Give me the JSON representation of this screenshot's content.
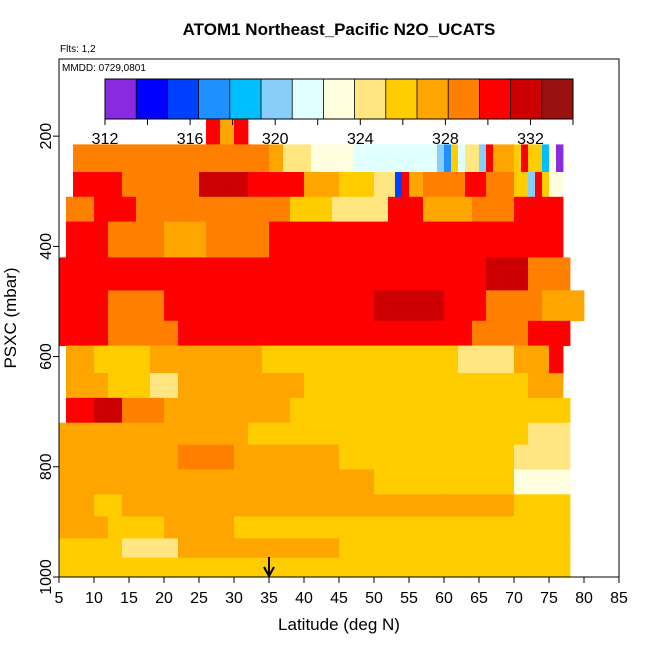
{
  "chart_data": {
    "type": "heatmap",
    "title": "ATOM1 Northeast_Pacific N2O_UCATS",
    "flights_label": "Flts: 1,2",
    "date_label": "MMDD: 0729,0801",
    "xlabel": "Latitude (deg N)",
    "ylabel": "PSXC (mbar)",
    "xlim": [
      5,
      85
    ],
    "ylim": [
      1000,
      60
    ],
    "x_ticks": [
      5,
      10,
      15,
      20,
      25,
      30,
      35,
      40,
      45,
      50,
      55,
      60,
      65,
      70,
      75,
      80,
      85
    ],
    "y_ticks": [
      200,
      400,
      600,
      800,
      1000
    ],
    "colorbar": {
      "range": [
        312,
        334
      ],
      "tick_values": [
        312,
        316,
        320,
        324,
        328,
        332
      ],
      "tick_labels": [
        "312",
        "316",
        "320",
        "324",
        "328",
        "332"
      ],
      "colors": [
        "#8a2be2",
        "#0000ff",
        "#0040ff",
        "#1e90ff",
        "#00bfff",
        "#87cefa",
        "#e0ffff",
        "#ffffe0",
        "#ffe680",
        "#ffcc00",
        "#ffa500",
        "#ff8000",
        "#ff0000",
        "#cc0000",
        "#991111"
      ]
    },
    "marker_arrow_latitude": 35,
    "bands": [
      {
        "p_top": 170,
        "p_bot": 215,
        "segments": [
          {
            "x0": 26,
            "x1": 28,
            "v": 330.5
          },
          {
            "x0": 28,
            "x1": 30,
            "v": 328
          },
          {
            "x0": 30,
            "x1": 32,
            "v": 331
          }
        ]
      },
      {
        "p_top": 215,
        "p_bot": 265,
        "segments": [
          {
            "x0": 7,
            "x1": 20,
            "v": 328.5
          },
          {
            "x0": 20,
            "x1": 35,
            "v": 329
          },
          {
            "x0": 35,
            "x1": 37,
            "v": 327
          },
          {
            "x0": 37,
            "x1": 41,
            "v": 324.5
          },
          {
            "x0": 41,
            "x1": 47,
            "v": 322.5
          },
          {
            "x0": 47,
            "x1": 59,
            "v": 321.5
          },
          {
            "x0": 59,
            "x1": 60,
            "v": 320
          },
          {
            "x0": 60,
            "x1": 61,
            "v": 317
          },
          {
            "x0": 61,
            "x1": 62,
            "v": 326
          },
          {
            "x0": 62,
            "x1": 63,
            "v": 321
          },
          {
            "x0": 63,
            "x1": 65,
            "v": 325
          },
          {
            "x0": 65,
            "x1": 66,
            "v": 320
          },
          {
            "x0": 66,
            "x1": 67,
            "v": 330
          },
          {
            "x0": 67,
            "x1": 70,
            "v": 328
          },
          {
            "x0": 70,
            "x1": 71,
            "v": 326
          },
          {
            "x0": 71,
            "x1": 72,
            "v": 331
          },
          {
            "x0": 72,
            "x1": 74,
            "v": 326
          },
          {
            "x0": 74,
            "x1": 75,
            "v": 319
          },
          {
            "x0": 75,
            "x1": 76,
            "v": 323
          },
          {
            "x0": 76,
            "x1": 77,
            "v": 313
          }
        ]
      },
      {
        "p_top": 265,
        "p_bot": 310,
        "segments": [
          {
            "x0": 7,
            "x1": 14,
            "v": 330
          },
          {
            "x0": 14,
            "x1": 25,
            "v": 329.5
          },
          {
            "x0": 25,
            "x1": 32,
            "v": 331.5
          },
          {
            "x0": 32,
            "x1": 40,
            "v": 330.5
          },
          {
            "x0": 40,
            "x1": 45,
            "v": 327.5
          },
          {
            "x0": 45,
            "x1": 50,
            "v": 326
          },
          {
            "x0": 50,
            "x1": 53,
            "v": 324.5
          },
          {
            "x0": 53,
            "x1": 54,
            "v": 316
          },
          {
            "x0": 54,
            "x1": 55,
            "v": 331
          },
          {
            "x0": 55,
            "x1": 57,
            "v": 327
          },
          {
            "x0": 57,
            "x1": 63,
            "v": 328.5
          },
          {
            "x0": 63,
            "x1": 66,
            "v": 330.5
          },
          {
            "x0": 66,
            "x1": 70,
            "v": 329
          },
          {
            "x0": 70,
            "x1": 72,
            "v": 326.5
          },
          {
            "x0": 72,
            "x1": 73,
            "v": 320
          },
          {
            "x0": 73,
            "x1": 74,
            "v": 331
          },
          {
            "x0": 74,
            "x1": 75,
            "v": 326
          },
          {
            "x0": 75,
            "x1": 77,
            "v": 323
          }
        ]
      },
      {
        "p_top": 310,
        "p_bot": 355,
        "segments": [
          {
            "x0": 6,
            "x1": 10,
            "v": 329.5
          },
          {
            "x0": 10,
            "x1": 16,
            "v": 330.5
          },
          {
            "x0": 16,
            "x1": 24,
            "v": 328.5
          },
          {
            "x0": 24,
            "x1": 30,
            "v": 329.5
          },
          {
            "x0": 30,
            "x1": 38,
            "v": 328.5
          },
          {
            "x0": 38,
            "x1": 44,
            "v": 326
          },
          {
            "x0": 44,
            "x1": 52,
            "v": 324.5
          },
          {
            "x0": 52,
            "x1": 57,
            "v": 331
          },
          {
            "x0": 57,
            "x1": 64,
            "v": 328
          },
          {
            "x0": 64,
            "x1": 70,
            "v": 329
          },
          {
            "x0": 70,
            "x1": 74,
            "v": 330
          },
          {
            "x0": 74,
            "x1": 77,
            "v": 331
          }
        ]
      },
      {
        "p_top": 355,
        "p_bot": 420,
        "segments": [
          {
            "x0": 6,
            "x1": 12,
            "v": 330.5
          },
          {
            "x0": 12,
            "x1": 20,
            "v": 329
          },
          {
            "x0": 20,
            "x1": 26,
            "v": 327
          },
          {
            "x0": 26,
            "x1": 35,
            "v": 329
          },
          {
            "x0": 35,
            "x1": 45,
            "v": 330.5
          },
          {
            "x0": 45,
            "x1": 55,
            "v": 330
          },
          {
            "x0": 55,
            "x1": 65,
            "v": 330
          },
          {
            "x0": 65,
            "x1": 72,
            "v": 330.5
          },
          {
            "x0": 72,
            "x1": 77,
            "v": 331
          }
        ]
      },
      {
        "p_top": 420,
        "p_bot": 480,
        "segments": [
          {
            "x0": 5,
            "x1": 10,
            "v": 331
          },
          {
            "x0": 10,
            "x1": 20,
            "v": 330.5
          },
          {
            "x0": 20,
            "x1": 30,
            "v": 331
          },
          {
            "x0": 30,
            "x1": 40,
            "v": 331
          },
          {
            "x0": 40,
            "x1": 50,
            "v": 331
          },
          {
            "x0": 50,
            "x1": 60,
            "v": 331
          },
          {
            "x0": 60,
            "x1": 66,
            "v": 330.5
          },
          {
            "x0": 66,
            "x1": 72,
            "v": 332
          },
          {
            "x0": 72,
            "x1": 78,
            "v": 329
          }
        ]
      },
      {
        "p_top": 480,
        "p_bot": 535,
        "segments": [
          {
            "x0": 5,
            "x1": 12,
            "v": 331
          },
          {
            "x0": 12,
            "x1": 20,
            "v": 329.5
          },
          {
            "x0": 20,
            "x1": 28,
            "v": 330
          },
          {
            "x0": 28,
            "x1": 40,
            "v": 331
          },
          {
            "x0": 40,
            "x1": 50,
            "v": 331
          },
          {
            "x0": 50,
            "x1": 60,
            "v": 331.5
          },
          {
            "x0": 60,
            "x1": 66,
            "v": 331
          },
          {
            "x0": 66,
            "x1": 74,
            "v": 329
          },
          {
            "x0": 74,
            "x1": 80,
            "v": 328
          }
        ]
      },
      {
        "p_top": 535,
        "p_bot": 580,
        "segments": [
          {
            "x0": 5,
            "x1": 12,
            "v": 330.5
          },
          {
            "x0": 12,
            "x1": 22,
            "v": 329
          },
          {
            "x0": 22,
            "x1": 30,
            "v": 330.5
          },
          {
            "x0": 30,
            "x1": 42,
            "v": 331
          },
          {
            "x0": 42,
            "x1": 55,
            "v": 331
          },
          {
            "x0": 55,
            "x1": 64,
            "v": 330.5
          },
          {
            "x0": 64,
            "x1": 72,
            "v": 329
          },
          {
            "x0": 72,
            "x1": 78,
            "v": 330
          }
        ]
      },
      {
        "p_top": 580,
        "p_bot": 630,
        "segments": [
          {
            "x0": 6,
            "x1": 10,
            "v": 327
          },
          {
            "x0": 10,
            "x1": 18,
            "v": 326
          },
          {
            "x0": 18,
            "x1": 24,
            "v": 327.5
          },
          {
            "x0": 24,
            "x1": 34,
            "v": 327
          },
          {
            "x0": 34,
            "x1": 50,
            "v": 326.5
          },
          {
            "x0": 50,
            "x1": 62,
            "v": 326
          },
          {
            "x0": 62,
            "x1": 70,
            "v": 325
          },
          {
            "x0": 70,
            "x1": 75,
            "v": 327
          },
          {
            "x0": 75,
            "x1": 77,
            "v": 330
          }
        ]
      },
      {
        "p_top": 630,
        "p_bot": 675,
        "segments": [
          {
            "x0": 6,
            "x1": 12,
            "v": 328
          },
          {
            "x0": 12,
            "x1": 18,
            "v": 326.5
          },
          {
            "x0": 18,
            "x1": 22,
            "v": 324.5
          },
          {
            "x0": 22,
            "x1": 28,
            "v": 327.5
          },
          {
            "x0": 28,
            "x1": 40,
            "v": 327
          },
          {
            "x0": 40,
            "x1": 55,
            "v": 326.5
          },
          {
            "x0": 55,
            "x1": 66,
            "v": 326.5
          },
          {
            "x0": 66,
            "x1": 72,
            "v": 326
          },
          {
            "x0": 72,
            "x1": 77,
            "v": 328
          }
        ]
      },
      {
        "p_top": 675,
        "p_bot": 720,
        "segments": [
          {
            "x0": 6,
            "x1": 10,
            "v": 331
          },
          {
            "x0": 10,
            "x1": 14,
            "v": 331.5
          },
          {
            "x0": 14,
            "x1": 20,
            "v": 329.5
          },
          {
            "x0": 20,
            "x1": 26,
            "v": 328
          },
          {
            "x0": 26,
            "x1": 38,
            "v": 327
          },
          {
            "x0": 38,
            "x1": 55,
            "v": 326.5
          },
          {
            "x0": 55,
            "x1": 68,
            "v": 326
          },
          {
            "x0": 68,
            "x1": 74,
            "v": 326.5
          },
          {
            "x0": 74,
            "x1": 78,
            "v": 326
          }
        ]
      },
      {
        "p_top": 720,
        "p_bot": 760,
        "segments": [
          {
            "x0": 5,
            "x1": 12,
            "v": 327
          },
          {
            "x0": 12,
            "x1": 20,
            "v": 327.5
          },
          {
            "x0": 20,
            "x1": 32,
            "v": 327
          },
          {
            "x0": 32,
            "x1": 48,
            "v": 326.5
          },
          {
            "x0": 48,
            "x1": 62,
            "v": 326
          },
          {
            "x0": 62,
            "x1": 72,
            "v": 325.5
          },
          {
            "x0": 72,
            "x1": 78,
            "v": 325
          }
        ]
      },
      {
        "p_top": 760,
        "p_bot": 805,
        "segments": [
          {
            "x0": 5,
            "x1": 12,
            "v": 328
          },
          {
            "x0": 12,
            "x1": 22,
            "v": 327.5
          },
          {
            "x0": 22,
            "x1": 30,
            "v": 328.5
          },
          {
            "x0": 30,
            "x1": 45,
            "v": 327
          },
          {
            "x0": 45,
            "x1": 60,
            "v": 326.5
          },
          {
            "x0": 60,
            "x1": 70,
            "v": 325.5
          },
          {
            "x0": 70,
            "x1": 78,
            "v": 324.5
          }
        ]
      },
      {
        "p_top": 805,
        "p_bot": 850,
        "segments": [
          {
            "x0": 5,
            "x1": 12,
            "v": 327
          },
          {
            "x0": 12,
            "x1": 22,
            "v": 327.5
          },
          {
            "x0": 22,
            "x1": 35,
            "v": 327
          },
          {
            "x0": 35,
            "x1": 50,
            "v": 327
          },
          {
            "x0": 50,
            "x1": 62,
            "v": 326.5
          },
          {
            "x0": 62,
            "x1": 70,
            "v": 325.5
          },
          {
            "x0": 70,
            "x1": 78,
            "v": 323.5
          }
        ]
      },
      {
        "p_top": 850,
        "p_bot": 890,
        "segments": [
          {
            "x0": 5,
            "x1": 10,
            "v": 327
          },
          {
            "x0": 10,
            "x1": 14,
            "v": 325.5
          },
          {
            "x0": 14,
            "x1": 22,
            "v": 327.5
          },
          {
            "x0": 22,
            "x1": 30,
            "v": 328
          },
          {
            "x0": 30,
            "x1": 45,
            "v": 327.5
          },
          {
            "x0": 45,
            "x1": 60,
            "v": 327
          },
          {
            "x0": 60,
            "x1": 70,
            "v": 327
          },
          {
            "x0": 70,
            "x1": 78,
            "v": 325.5
          }
        ]
      },
      {
        "p_top": 890,
        "p_bot": 930,
        "segments": [
          {
            "x0": 5,
            "x1": 12,
            "v": 327
          },
          {
            "x0": 12,
            "x1": 20,
            "v": 326.5
          },
          {
            "x0": 20,
            "x1": 30,
            "v": 327
          },
          {
            "x0": 30,
            "x1": 45,
            "v": 326.5
          },
          {
            "x0": 45,
            "x1": 60,
            "v": 326.5
          },
          {
            "x0": 60,
            "x1": 70,
            "v": 326.5
          },
          {
            "x0": 70,
            "x1": 78,
            "v": 326.5
          }
        ]
      },
      {
        "p_top": 930,
        "p_bot": 965,
        "segments": [
          {
            "x0": 5,
            "x1": 10,
            "v": 326.5
          },
          {
            "x0": 10,
            "x1": 14,
            "v": 326
          },
          {
            "x0": 14,
            "x1": 22,
            "v": 324.5
          },
          {
            "x0": 22,
            "x1": 28,
            "v": 327.5
          },
          {
            "x0": 28,
            "x1": 45,
            "v": 327
          },
          {
            "x0": 45,
            "x1": 60,
            "v": 326.5
          },
          {
            "x0": 60,
            "x1": 70,
            "v": 326.5
          },
          {
            "x0": 70,
            "x1": 78,
            "v": 326.5
          }
        ]
      },
      {
        "p_top": 965,
        "p_bot": 1000,
        "segments": [
          {
            "x0": 5,
            "x1": 10,
            "v": 326
          },
          {
            "x0": 10,
            "x1": 20,
            "v": 325.5
          },
          {
            "x0": 20,
            "x1": 35,
            "v": 326
          },
          {
            "x0": 35,
            "x1": 55,
            "v": 326
          },
          {
            "x0": 55,
            "x1": 70,
            "v": 326
          },
          {
            "x0": 70,
            "x1": 78,
            "v": 326
          }
        ]
      }
    ]
  }
}
